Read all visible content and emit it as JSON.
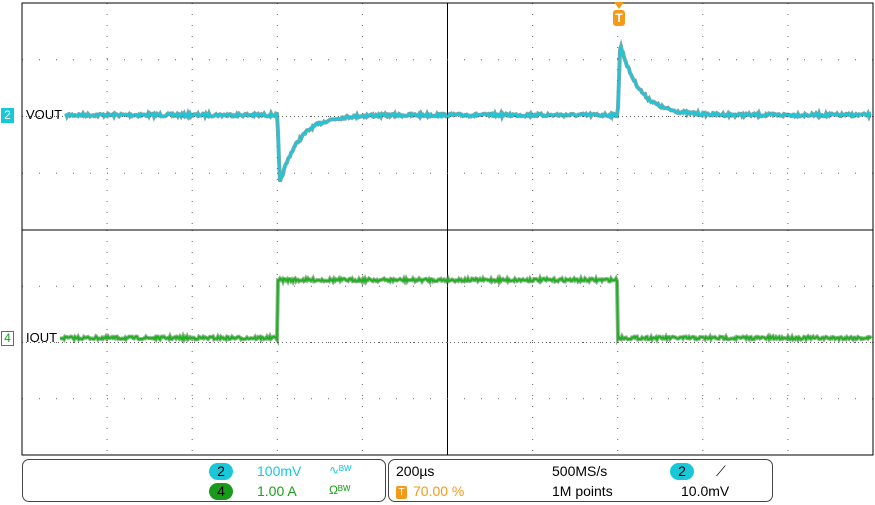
{
  "chart_data": {
    "type": "line",
    "x_unit": "µs",
    "xlim": [
      -1400,
      600
    ],
    "time_per_div": "200µs",
    "divisions_x": 10,
    "grid": true,
    "panels": [
      {
        "channel": "2",
        "label": "VOUT",
        "color": "#19c8d8",
        "scale": "100mV",
        "ylim_mV": [
          -100,
          400
        ],
        "events": [
          {
            "t": -800,
            "type": "undershoot",
            "peak_mV": -120
          },
          {
            "t": 0,
            "type": "overshoot",
            "peak_mV": 125
          }
        ],
        "baseline_mV": 0
      },
      {
        "channel": "4",
        "label": "IOUT",
        "color": "#22b022",
        "scale": "1.00 A",
        "ylim_A": [
          -2,
          2
        ],
        "levels": [
          {
            "from": -1400,
            "to": -800,
            "A": 0
          },
          {
            "from": -800,
            "to": 0,
            "A": 1.0
          },
          {
            "from": 0,
            "to": 600,
            "A": 0
          }
        ]
      }
    ]
  },
  "channels": [
    {
      "num": "2",
      "scale": "100mV",
      "coupling_icon": "ac-bw-icon",
      "color": "#19c8d8"
    },
    {
      "num": "4",
      "scale": "1.00 A",
      "coupling_icon": "ohm-bw-icon",
      "color": "#1aa01a"
    }
  ],
  "timebase": {
    "time_div": "200µs",
    "trigger_pos": "70.00 %",
    "sample_rate": "500MS/s",
    "record": "1M points"
  },
  "trigger": {
    "source": "2",
    "slope_icon": "rising-edge-icon",
    "level": "10.0mV",
    "marker": "T",
    "color": "#f39a18"
  }
}
